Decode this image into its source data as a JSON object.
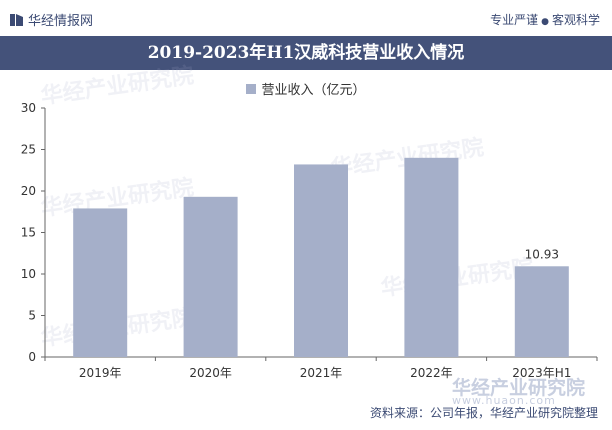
{
  "header": {
    "brand": "华经情报网",
    "slogan_left": "专业严谨",
    "slogan_right": "客观科学"
  },
  "colors": {
    "brand_navy": "#44527a",
    "bar": "#a5afc9"
  },
  "chart_data": {
    "type": "bar",
    "title": "2019-2023年H1汉威科技营业收入情况",
    "categories": [
      "2019年",
      "2020年",
      "2021年",
      "2022年",
      "2023年H1"
    ],
    "series": [
      {
        "name": "营业收入（亿元）",
        "values": [
          17.9,
          19.3,
          23.2,
          24.0,
          10.93
        ]
      }
    ],
    "data_labels": [
      null,
      null,
      null,
      null,
      "10.93"
    ],
    "ylim": [
      0,
      30
    ],
    "yticks": [
      0,
      5,
      10,
      15,
      20,
      25,
      30
    ],
    "legend_position": "top-center",
    "grid": false
  },
  "watermark": {
    "brand": "华经产业研究院",
    "url": "www.huaon.com"
  },
  "footer": {
    "source": "资料来源：公司年报，华经产业研究院整理"
  }
}
